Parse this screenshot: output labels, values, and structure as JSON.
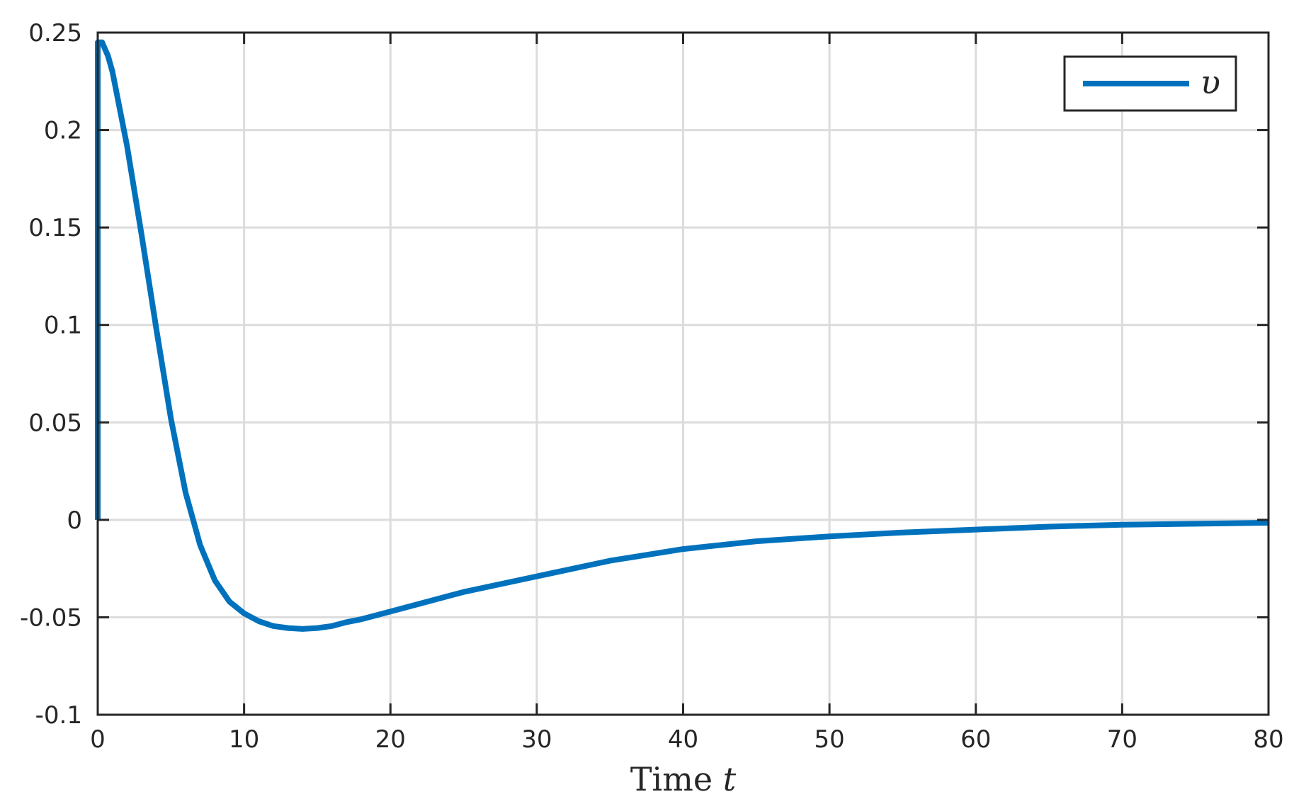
{
  "chart_data": {
    "type": "line",
    "title": "",
    "xlabel": "Time",
    "xlabel_var": "t",
    "ylabel": "",
    "xlim": [
      0,
      80
    ],
    "ylim": [
      -0.1,
      0.25
    ],
    "xticks": [
      0,
      10,
      20,
      30,
      40,
      50,
      60,
      70,
      80
    ],
    "xtick_labels": [
      "0",
      "10",
      "20",
      "30",
      "40",
      "50",
      "60",
      "70",
      "80"
    ],
    "yticks": [
      -0.1,
      -0.05,
      0,
      0.05,
      0.1,
      0.15,
      0.2,
      0.25
    ],
    "ytick_labels": [
      "-0.1",
      "-0.05",
      "0",
      "0.05",
      "0.1",
      "0.15",
      "0.2",
      "0.25"
    ],
    "grid": true,
    "legend_position": "top-right",
    "series": [
      {
        "name": "υ",
        "color": "#0072BD",
        "x": [
          0,
          0,
          0.3,
          0.7,
          1,
          2,
          3,
          4,
          5,
          6,
          7,
          8,
          9,
          10,
          11,
          12,
          13,
          14,
          15,
          16,
          17,
          18,
          20,
          22,
          25,
          30,
          35,
          40,
          45,
          50,
          55,
          60,
          65,
          70,
          75,
          80
        ],
        "y": [
          0,
          0.245,
          0.245,
          0.238,
          0.23,
          0.192,
          0.146,
          0.098,
          0.052,
          0.014,
          -0.013,
          -0.031,
          -0.042,
          -0.048,
          -0.052,
          -0.0545,
          -0.0555,
          -0.056,
          -0.0555,
          -0.0545,
          -0.0525,
          -0.051,
          -0.047,
          -0.043,
          -0.037,
          -0.029,
          -0.021,
          -0.015,
          -0.011,
          -0.0085,
          -0.0065,
          -0.005,
          -0.0035,
          -0.0025,
          -0.002,
          -0.0015
        ]
      }
    ]
  }
}
